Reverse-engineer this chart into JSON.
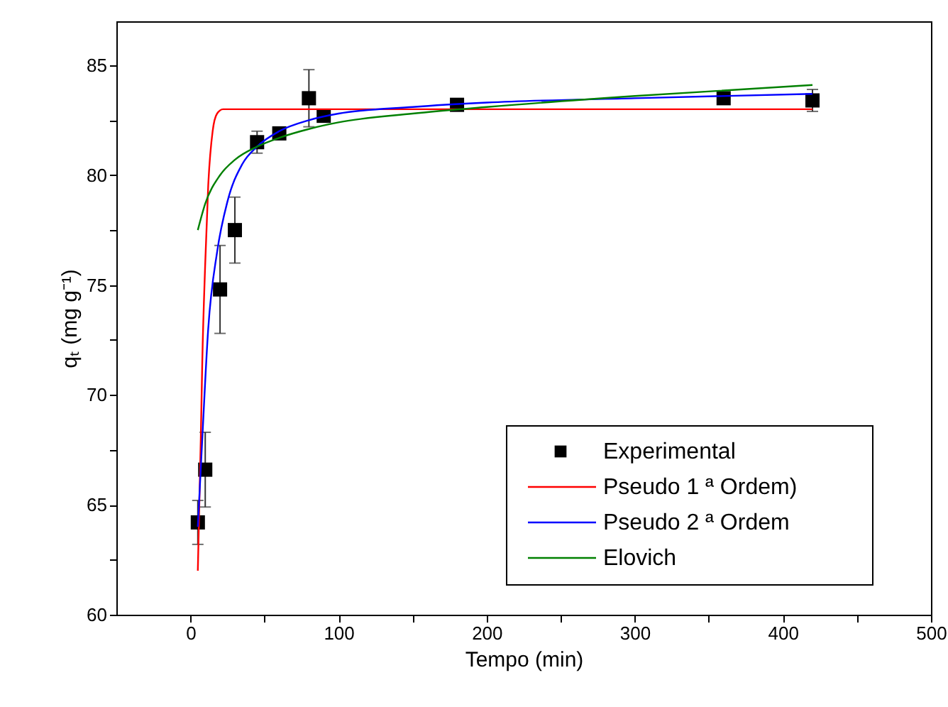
{
  "chart_data": {
    "type": "line",
    "xlabel": "Tempo (min)",
    "ylabel": "qₜ (mg g⁻¹)",
    "xlim": [
      -50,
      500
    ],
    "xticks": [
      0,
      {
        "value": 50,
        "label": null
      },
      100,
      {
        "value": 150,
        "label": null
      },
      200,
      {
        "value": 250,
        "label": null
      },
      300,
      {
        "value": 350,
        "label": null
      },
      400,
      {
        "value": 450,
        "label": null
      },
      500
    ],
    "ylim": [
      60,
      87
    ],
    "yticks": [
      60,
      {
        "value": 62.5,
        "label": null
      },
      65,
      {
        "value": 67.5,
        "label": null
      },
      70,
      {
        "value": 72.5,
        "label": null
      },
      75,
      {
        "value": 77.5,
        "label": null
      },
      80,
      {
        "value": 82.5,
        "label": null
      },
      85
    ],
    "grid": false,
    "legend": "bottom right",
    "series": [
      {
        "name": "Experimental",
        "type": "scatter",
        "marker": "square",
        "color": "#000000",
        "x": [
          5,
          10,
          20,
          30,
          45,
          60,
          80,
          90,
          180,
          360,
          420
        ],
        "values": [
          64.2,
          66.6,
          74.8,
          77.5,
          81.5,
          81.9,
          83.5,
          82.7,
          83.2,
          83.5,
          83.4
        ],
        "errors": [
          1.0,
          1.7,
          2.0,
          1.5,
          0.5,
          null,
          1.3,
          null,
          null,
          null,
          0.5
        ]
      },
      {
        "name": "Pseudo 1 ª Ordem)",
        "color": "#ff0000",
        "x": [
          5,
          6,
          7,
          8,
          10,
          12,
          15,
          18,
          22,
          30,
          60,
          100,
          200,
          300,
          420
        ],
        "values": [
          62.0,
          65.0,
          68.0,
          71.5,
          76.0,
          79.5,
          82.0,
          82.8,
          83.0,
          83.0,
          83.0,
          83.0,
          83.0,
          83.0,
          83.0
        ]
      },
      {
        "name": "Pseudo 2 ª Ordem",
        "color": "#0000ff",
        "x": [
          5,
          8,
          12,
          18,
          25,
          35,
          45,
          60,
          80,
          100,
          150,
          200,
          300,
          420
        ],
        "values": [
          64.0,
          68.0,
          73.0,
          76.5,
          78.8,
          80.5,
          81.3,
          82.0,
          82.5,
          82.8,
          83.1,
          83.3,
          83.5,
          83.7
        ]
      },
      {
        "name": "Elovich",
        "color": "#008000",
        "x": [
          5,
          10,
          20,
          30,
          45,
          60,
          80,
          100,
          150,
          200,
          300,
          420
        ],
        "values": [
          77.5,
          78.7,
          80.0,
          80.7,
          81.3,
          81.7,
          82.1,
          82.4,
          82.8,
          83.1,
          83.6,
          84.1
        ]
      }
    ]
  }
}
